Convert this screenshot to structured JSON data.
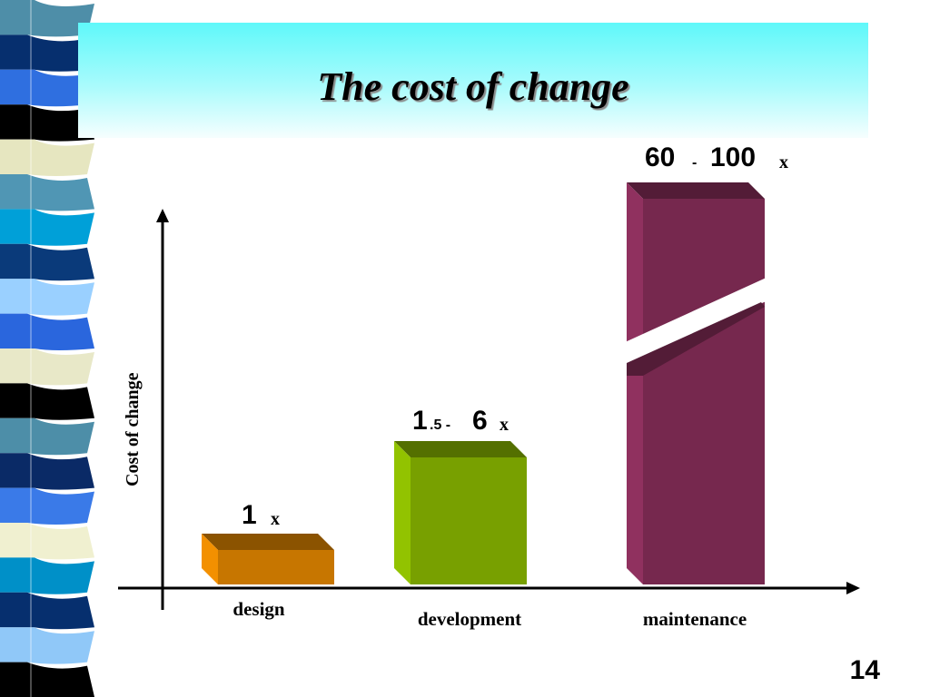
{
  "slide": {
    "title": "The cost of change",
    "page_number": "14"
  },
  "colors": {
    "strip": [
      "#4e8ea8",
      "#062f6e",
      "#2f6fe0",
      "#000000",
      "#e6e6c0",
      "#5096b4",
      "#00a0d8",
      "#0a3a7a",
      "#9ad0ff",
      "#2a66dd",
      "#e8e8c8",
      "#000000",
      "#4d8ea8",
      "#0a2a66",
      "#3a7ae8",
      "#f0f0d0",
      "#0090c8",
      "#062f6e",
      "#90c8f8",
      "#000000"
    ],
    "title_band_top": "#5ff8fa",
    "bar_design": "#c77600",
    "bar_development": "#78a000",
    "bar_maintenance": "#76284e"
  },
  "chart_data": {
    "type": "bar",
    "ylabel": "Cost of change",
    "categories": [
      "design",
      "development",
      "maintenance"
    ],
    "bars": [
      {
        "category": "design",
        "value_low": 1,
        "value_high": 1,
        "label_main": "1",
        "label_unit": "x"
      },
      {
        "category": "development",
        "value_low": 1.5,
        "value_high": 6,
        "label_main": "1",
        "label_small": ".5 -",
        "label_main2": "6",
        "label_unit": "x"
      },
      {
        "category": "maintenance",
        "value_low": 60,
        "value_high": 100,
        "label_main": "60",
        "label_small": "-",
        "label_main2": "100",
        "label_unit": "x",
        "axis_break": true
      }
    ],
    "grid": false,
    "legend": "none"
  }
}
